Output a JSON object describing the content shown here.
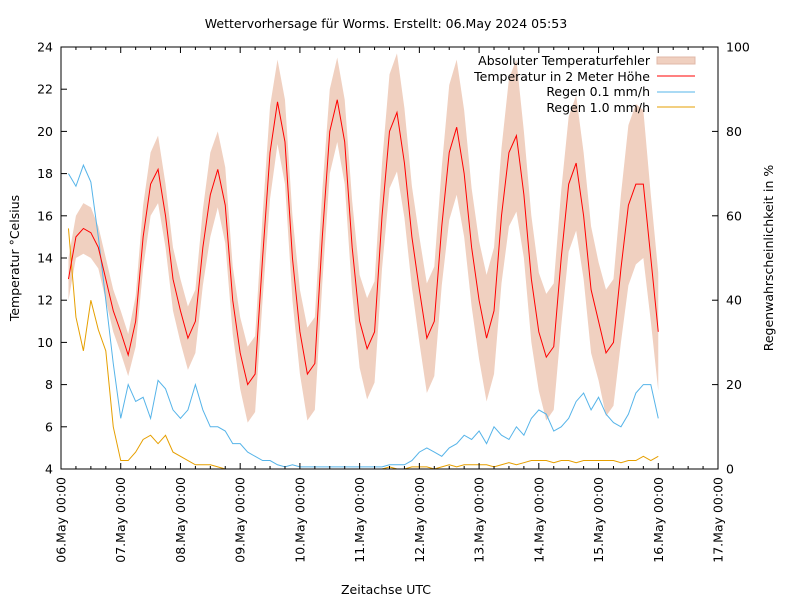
{
  "chart_data": {
    "type": "line",
    "title": "Wettervorhersage für Worms. Erstellt: 06.May 2024 05:53",
    "xlabel": "Zeitachse UTC",
    "ylabel": "Temperatur °Celsius",
    "y2label": "Regenwahrscheinlichkeit in %",
    "ylim": [
      4,
      24
    ],
    "y2lim": [
      0,
      100
    ],
    "yticks": [
      "4",
      "6",
      "8",
      "10",
      "12",
      "14",
      "16",
      "18",
      "20",
      "22",
      "24"
    ],
    "y2ticks": [
      "0",
      "20",
      "40",
      "60",
      "80",
      "100"
    ],
    "xticks": [
      "06.May 00:00",
      "07.May 00:00",
      "08.May 00:00",
      "09.May 00:00",
      "10.May 00:00",
      "11.May 00:00",
      "12.May 00:00",
      "13.May 00:00",
      "14.May 00:00",
      "15.May 00:00",
      "16.May 00:00",
      "17.May 00:00"
    ],
    "xlim_days": [
      0,
      11
    ],
    "grid": false,
    "legend_position": "top-right",
    "colors": {
      "error_band": "#f0d0c0",
      "temperature": "#ff0000",
      "rain01": "#56b4e9",
      "rain10": "#e69f00"
    },
    "times": [
      "06.05 03:00",
      "06.05 06:00",
      "06.05 09:00",
      "06.05 12:00",
      "06.05 15:00",
      "06.05 18:00",
      "06.05 21:00",
      "07.05 00:00",
      "07.05 03:00",
      "07.05 06:00",
      "07.05 09:00",
      "07.05 12:00",
      "07.05 15:00",
      "07.05 18:00",
      "07.05 21:00",
      "08.05 00:00",
      "08.05 03:00",
      "08.05 06:00",
      "08.05 09:00",
      "08.05 12:00",
      "08.05 15:00",
      "08.05 18:00",
      "08.05 21:00",
      "09.05 00:00",
      "09.05 03:00",
      "09.05 06:00",
      "09.05 09:00",
      "09.05 12:00",
      "09.05 15:00",
      "09.05 18:00",
      "09.05 21:00",
      "10.05 00:00",
      "10.05 03:00",
      "10.05 06:00",
      "10.05 09:00",
      "10.05 12:00",
      "10.05 15:00",
      "10.05 18:00",
      "10.05 21:00",
      "11.05 00:00",
      "11.05 03:00",
      "11.05 06:00",
      "11.05 09:00",
      "11.05 12:00",
      "11.05 15:00",
      "11.05 18:00",
      "11.05 21:00",
      "12.05 00:00",
      "12.05 03:00",
      "12.05 06:00",
      "12.05 09:00",
      "12.05 12:00",
      "12.05 15:00",
      "12.05 18:00",
      "12.05 21:00",
      "13.05 00:00",
      "13.05 03:00",
      "13.05 06:00",
      "13.05 09:00",
      "13.05 12:00",
      "13.05 15:00",
      "13.05 18:00",
      "13.05 21:00",
      "14.05 00:00",
      "14.05 03:00",
      "14.05 06:00",
      "14.05 09:00",
      "14.05 12:00",
      "14.05 15:00",
      "14.05 18:00",
      "14.05 21:00",
      "15.05 00:00",
      "15.05 03:00",
      "15.05 06:00",
      "15.05 09:00",
      "15.05 12:00",
      "15.05 15:00",
      "15.05 18:00",
      "15.05 21:00",
      "16.05 00:00"
    ],
    "series": [
      {
        "name": "Absoluter Temperaturfehler",
        "kind": "band",
        "values": [
          1,
          1,
          1.2,
          1.2,
          1,
          1,
          1,
          1,
          1,
          1.2,
          1.5,
          1.5,
          1.6,
          1.5,
          1.5,
          1.5,
          1.5,
          1.5,
          1.8,
          2,
          1.8,
          1.8,
          1.6,
          1.7,
          1.8,
          1.8,
          2,
          2.2,
          2,
          2,
          2,
          2,
          2.2,
          2.2,
          2.2,
          2,
          2,
          2,
          2.2,
          2.2,
          2.4,
          2.4,
          2.5,
          2.7,
          2.8,
          2.6,
          2.4,
          2.5,
          2.6,
          2.6,
          2.8,
          3.2,
          3.2,
          3,
          2.8,
          2.8,
          3,
          3,
          3.2,
          3.5,
          3.6,
          3,
          3,
          2.8,
          3,
          3,
          3.2,
          3.2,
          3.2,
          3,
          3,
          2.8,
          3,
          3,
          3.5,
          3.8,
          3.8,
          3.5,
          3,
          2.8
        ]
      },
      {
        "name": "Temperatur in 2 Meter Höhe",
        "axis": "left",
        "values": [
          13,
          15,
          15.4,
          15.2,
          14.5,
          13,
          11.5,
          10.5,
          9.4,
          11,
          15,
          17.5,
          18.2,
          16,
          13,
          11.5,
          10.2,
          11,
          14.5,
          17,
          18.2,
          16.5,
          12,
          9.5,
          8,
          8.5,
          14,
          19,
          21.4,
          19.5,
          14,
          10.5,
          8.5,
          9,
          15,
          20,
          21.5,
          19.5,
          14.5,
          11,
          9.7,
          10.5,
          16,
          20,
          20.9,
          18.5,
          15,
          12.5,
          10.2,
          11,
          15.5,
          19,
          20.2,
          18,
          14.5,
          12,
          10.2,
          11.5,
          16,
          19,
          19.8,
          17,
          13,
          10.5,
          9.3,
          9.8,
          14,
          17.5,
          18.5,
          16,
          12.5,
          11,
          9.5,
          10,
          13.5,
          16.5,
          17.5,
          17.5,
          14,
          10.5
        ]
      },
      {
        "name": "Regen 0.1 mm/h",
        "axis": "right",
        "values": [
          70,
          67,
          72,
          68,
          55,
          40,
          25,
          12,
          20,
          16,
          17,
          12,
          21,
          19,
          14,
          12,
          14,
          20,
          14,
          10,
          10,
          9,
          6,
          6,
          4,
          3,
          2,
          2,
          1,
          0.5,
          1,
          0.5,
          0.5,
          0.5,
          0.5,
          0.5,
          0.5,
          0.5,
          0.5,
          0.5,
          0.5,
          0.5,
          0.5,
          1,
          1,
          1,
          2,
          4,
          5,
          4,
          3,
          5,
          6,
          8,
          7,
          9,
          6,
          10,
          8,
          7,
          10,
          8,
          12,
          14,
          13,
          9,
          10,
          12,
          16,
          18,
          14,
          17,
          13,
          11,
          10,
          13,
          18,
          20,
          20,
          12
        ]
      },
      {
        "name": "Regen 1.0 mm/h",
        "axis": "right",
        "values": [
          57,
          36,
          28,
          40,
          33,
          28,
          10,
          2,
          2,
          4,
          7,
          8,
          6,
          8,
          4,
          3,
          2,
          1,
          1,
          1,
          0.5,
          0,
          0,
          0,
          0,
          0,
          0,
          0,
          0,
          0,
          0,
          0,
          0,
          0,
          0,
          0,
          0,
          0,
          0,
          0,
          0,
          0,
          0,
          0.5,
          0,
          0,
          0.5,
          0.5,
          0.5,
          0,
          0.5,
          1,
          0.5,
          1,
          1,
          1,
          1,
          0.5,
          1,
          1.5,
          1,
          1.5,
          2,
          2,
          2,
          1.5,
          2,
          2,
          1.5,
          2,
          2,
          2,
          2,
          2,
          1.5,
          2,
          2,
          3,
          2,
          3
        ]
      }
    ]
  }
}
